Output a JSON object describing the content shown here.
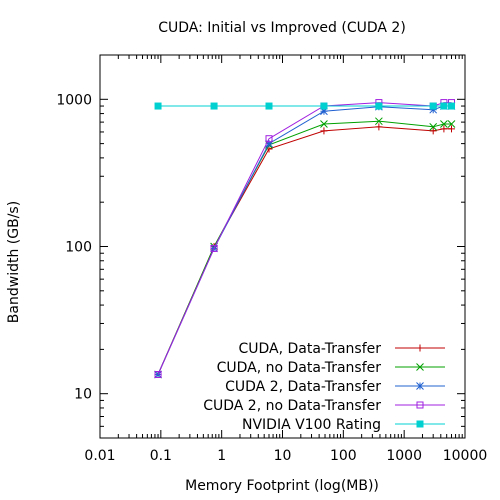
{
  "chart_data": {
    "type": "line",
    "title": "CUDA: Initial vs Improved (CUDA 2)",
    "xlabel": "Memory Footprint (log(MB))",
    "ylabel": "Bandwidth (GB/s)",
    "xscale": "log",
    "yscale": "log",
    "xlim": [
      0.01,
      10000
    ],
    "ylim": [
      5,
      2000
    ],
    "x_ticks": [
      {
        "value": 0.01,
        "label": "0.01"
      },
      {
        "value": 0.1,
        "label": "0.1"
      },
      {
        "value": 1,
        "label": "1"
      },
      {
        "value": 10,
        "label": "10"
      },
      {
        "value": 100,
        "label": "100"
      },
      {
        "value": 1000,
        "label": "1000"
      },
      {
        "value": 10000,
        "label": "10000"
      }
    ],
    "y_ticks": [
      {
        "value": 10,
        "label": "10"
      },
      {
        "value": 100,
        "label": "100"
      },
      {
        "value": 1000,
        "label": "1000"
      }
    ],
    "grid": false,
    "legend_position": "bottom-right",
    "series": [
      {
        "name": "CUDA, Data-Transfer",
        "color": "#c00000",
        "marker": "plus",
        "x": [
          0.09,
          0.75,
          6,
          48,
          384,
          3000,
          4500,
          6000
        ],
        "y": [
          13.5,
          100,
          460,
          610,
          650,
          610,
          630,
          630
        ]
      },
      {
        "name": "CUDA, no Data-Transfer",
        "color": "#00a000",
        "marker": "cross",
        "x": [
          0.09,
          0.75,
          6,
          48,
          384,
          3000,
          4500,
          6000
        ],
        "y": [
          13.5,
          100,
          490,
          680,
          710,
          650,
          680,
          680
        ]
      },
      {
        "name": "CUDA 2, Data-Transfer",
        "color": "#2060d0",
        "marker": "star",
        "x": [
          0.09,
          0.75,
          6,
          48,
          384,
          3000,
          4500,
          6000
        ],
        "y": [
          13.5,
          97,
          500,
          830,
          890,
          850,
          900,
          900
        ]
      },
      {
        "name": "CUDA 2, no Data-Transfer",
        "color": "#a020e0",
        "marker": "square-open",
        "x": [
          0.09,
          0.75,
          6,
          48,
          384,
          3000,
          4500,
          6000
        ],
        "y": [
          13.5,
          97,
          540,
          900,
          950,
          900,
          950,
          950
        ]
      },
      {
        "name": "NVIDIA V100 Rating",
        "color": "#00d0d0",
        "marker": "square-filled",
        "x": [
          0.09,
          0.75,
          6,
          48,
          384,
          3000,
          4500,
          6000
        ],
        "y": [
          900,
          900,
          900,
          900,
          900,
          900,
          900,
          900
        ]
      }
    ]
  }
}
